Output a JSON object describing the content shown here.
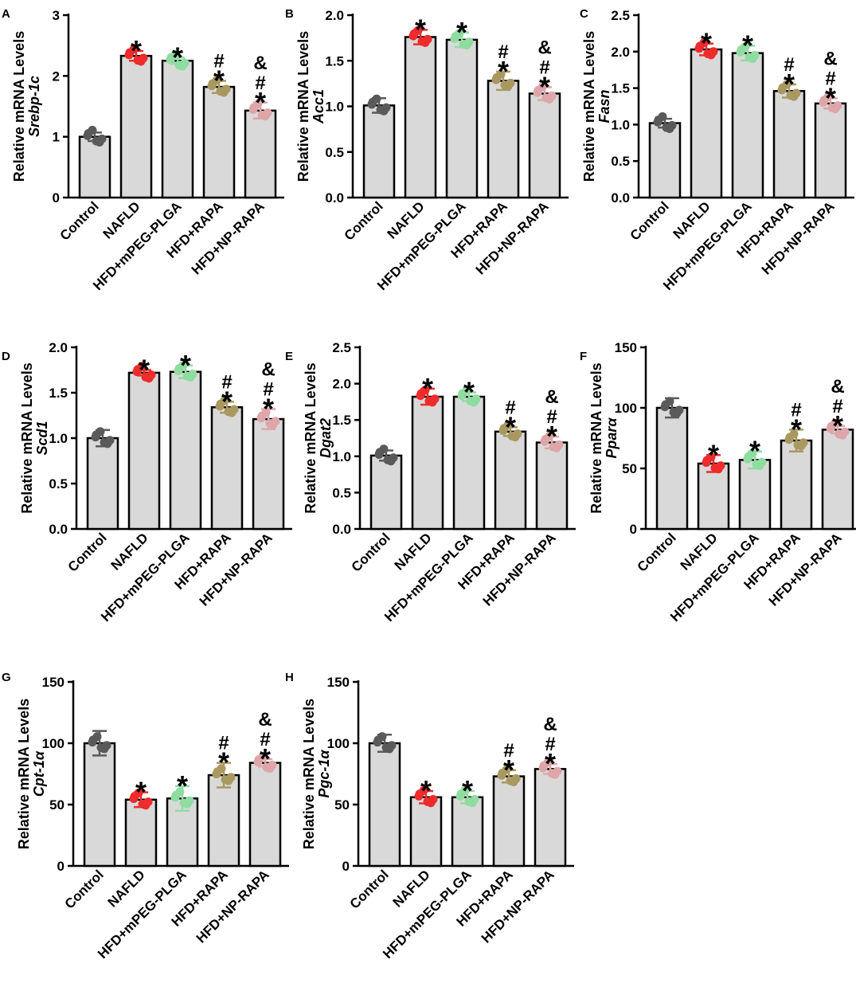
{
  "figure": {
    "ylabel_prefix": "Relative mRNA Levels",
    "categories": [
      "Control",
      "NAFLD",
      "HFD+mPEG-PLGA",
      "HFD+RAPA",
      "HFD+NP-RAPA"
    ],
    "group_colors": [
      "#5a5a5a",
      "#ef2b2b",
      "#8fdca0",
      "#a99860",
      "#dea6a9"
    ],
    "bar_color": "#d9d9d9"
  },
  "chart_data": [
    {
      "type": "bar",
      "panel": "A",
      "gene": "Srebp-1c",
      "ylim": [
        0,
        3
      ],
      "ticks": [
        "0",
        "1",
        "2",
        "3"
      ],
      "values": [
        1.0,
        2.33,
        2.25,
        1.82,
        1.43
      ],
      "errors": [
        0.07,
        0.08,
        0.05,
        0.1,
        0.13
      ],
      "annotations": [
        [],
        [
          "*"
        ],
        [
          "*"
        ],
        [
          "#",
          "*"
        ],
        [
          "&",
          "#",
          "*"
        ]
      ]
    },
    {
      "type": "bar",
      "panel": "B",
      "gene": "Acc1",
      "ylim": [
        0,
        2
      ],
      "ticks": [
        "0.0",
        "0.5",
        "1.0",
        "1.5",
        "2.0"
      ],
      "values": [
        1.01,
        1.76,
        1.73,
        1.28,
        1.14
      ],
      "errors": [
        0.08,
        0.08,
        0.08,
        0.1,
        0.07
      ],
      "annotations": [
        [],
        [
          "*"
        ],
        [
          "*"
        ],
        [
          "#",
          "*"
        ],
        [
          "&",
          "#",
          "*"
        ]
      ]
    },
    {
      "type": "bar",
      "panel": "C",
      "gene": "Fasn",
      "ylim": [
        0,
        2.5
      ],
      "ticks": [
        "0.0",
        "0.5",
        "1.0",
        "1.5",
        "2.0",
        "2.5"
      ],
      "values": [
        1.02,
        2.03,
        1.98,
        1.46,
        1.29
      ],
      "errors": [
        0.06,
        0.08,
        0.1,
        0.09,
        0.07
      ],
      "annotations": [
        [],
        [
          "*"
        ],
        [
          "*"
        ],
        [
          "#",
          "*"
        ],
        [
          "&",
          "#",
          "*"
        ]
      ]
    },
    {
      "type": "bar",
      "panel": "D",
      "gene": "Scd1",
      "ylim": [
        0,
        2
      ],
      "ticks": [
        "0.0",
        "0.5",
        "1.0",
        "1.5",
        "2.0"
      ],
      "values": [
        1.0,
        1.72,
        1.73,
        1.34,
        1.21
      ],
      "errors": [
        0.09,
        0.03,
        0.07,
        0.06,
        0.11
      ],
      "annotations": [
        [],
        [
          "*"
        ],
        [
          "*"
        ],
        [
          "#",
          "*"
        ],
        [
          "&",
          "#",
          "*"
        ]
      ]
    },
    {
      "type": "bar",
      "panel": "E",
      "gene": "Dgat2",
      "ylim": [
        0,
        2.5
      ],
      "ticks": [
        "0.0",
        "0.5",
        "1.0",
        "1.5",
        "2.0",
        "2.5"
      ],
      "values": [
        1.01,
        1.82,
        1.82,
        1.34,
        1.19
      ],
      "errors": [
        0.07,
        0.11,
        0.06,
        0.06,
        0.08
      ],
      "annotations": [
        [],
        [
          "*"
        ],
        [
          "*"
        ],
        [
          "#",
          "*"
        ],
        [
          "&",
          "#",
          "*"
        ]
      ]
    },
    {
      "type": "bar",
      "panel": "F",
      "gene": "Pparα",
      "ylim": [
        0,
        150
      ],
      "ticks": [
        "0",
        "50",
        "100",
        "150"
      ],
      "values": [
        100,
        54,
        57,
        73,
        82
      ],
      "errors": [
        8,
        7,
        7,
        9,
        3
      ],
      "annotations": [
        [],
        [
          "*"
        ],
        [
          "*"
        ],
        [
          "#",
          "*"
        ],
        [
          "&",
          "#",
          "*"
        ]
      ]
    },
    {
      "type": "bar",
      "panel": "G",
      "gene": "Cpt-1α",
      "ylim": [
        0,
        150
      ],
      "ticks": [
        "0",
        "50",
        "100",
        "150"
      ],
      "values": [
        100,
        54,
        55,
        74,
        84
      ],
      "errors": [
        10,
        6,
        10,
        10,
        3
      ],
      "annotations": [
        [],
        [
          "*"
        ],
        [
          "*"
        ],
        [
          "#",
          "*"
        ],
        [
          "&",
          "#",
          "*"
        ]
      ]
    },
    {
      "type": "bar",
      "panel": "H",
      "gene": "Pgc-1α",
      "ylim": [
        0,
        150
      ],
      "ticks": [
        "0",
        "50",
        "100",
        "150"
      ],
      "values": [
        100,
        56,
        56,
        73,
        79
      ],
      "errors": [
        7,
        5,
        5,
        5,
        4
      ],
      "annotations": [
        [],
        [
          "*"
        ],
        [
          "*"
        ],
        [
          "#",
          "*"
        ],
        [
          "&",
          "#",
          "*"
        ]
      ]
    }
  ]
}
